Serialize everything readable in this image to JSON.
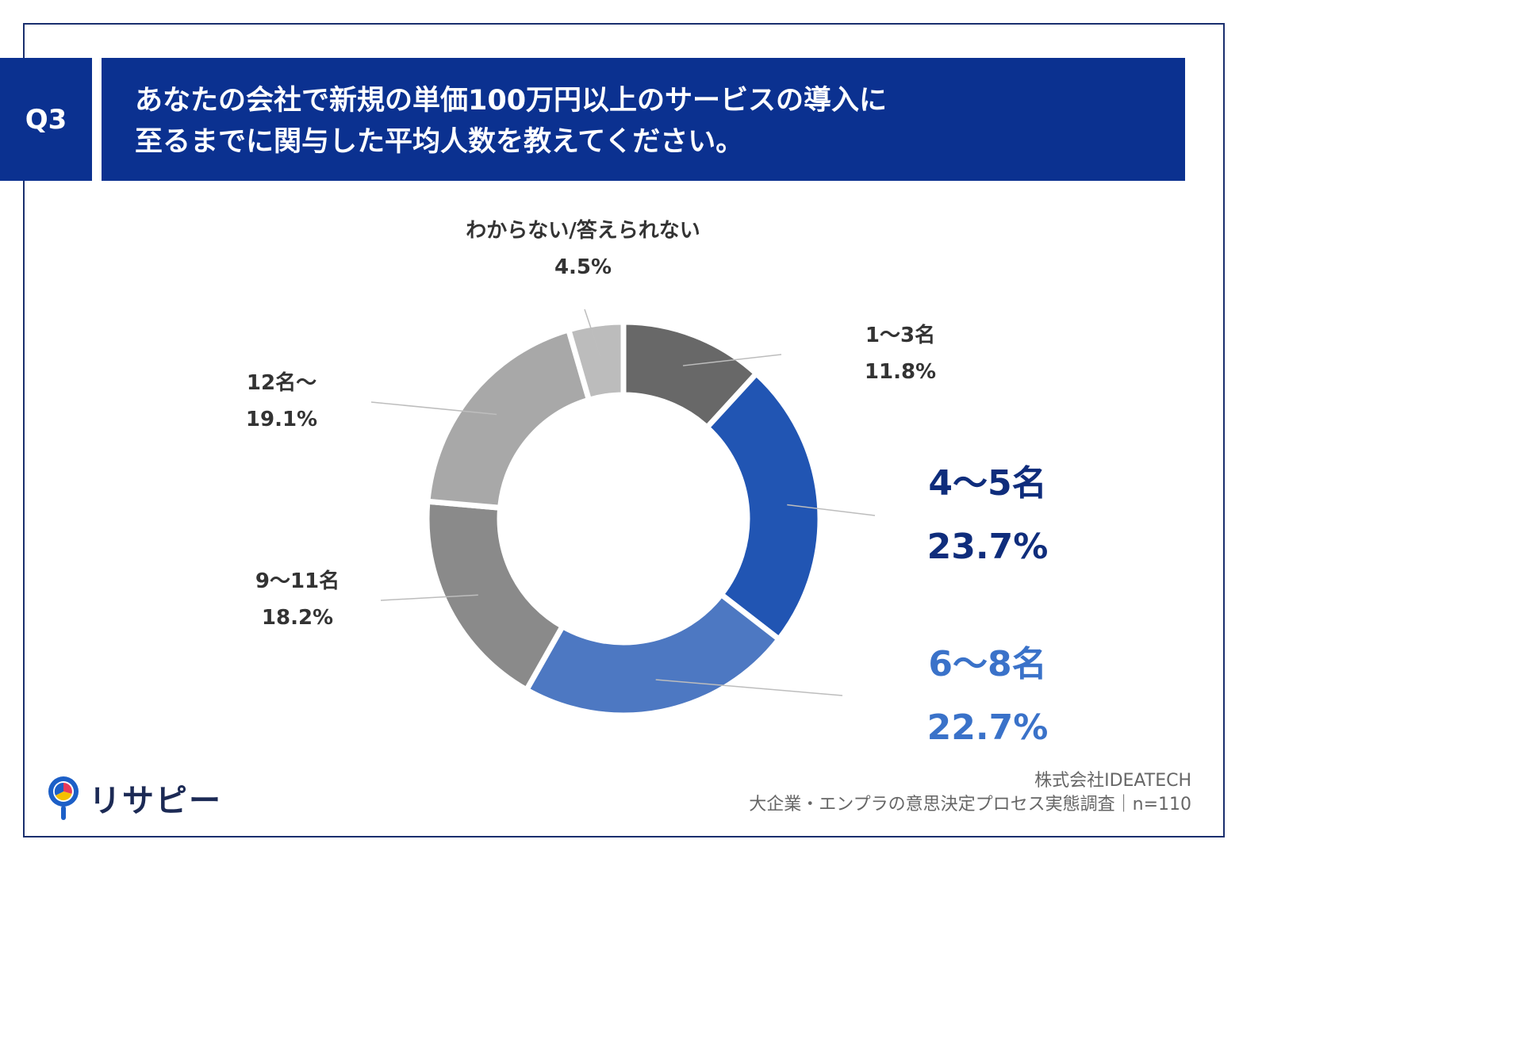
{
  "question": {
    "label": "Q3",
    "title_line1": "あなたの会社で新規の単価100万円以上のサービスの導入に",
    "title_line2": "至るまでに関与した平均人数を教えてください。"
  },
  "chart_data": {
    "type": "pie",
    "donut": true,
    "categories": [
      "1〜3名",
      "4〜5名",
      "6〜8名",
      "9〜11名",
      "12名〜",
      "わからない/答えられない"
    ],
    "values": [
      11.8,
      23.7,
      22.7,
      18.2,
      19.1,
      4.5
    ],
    "value_labels": [
      "11.8%",
      "23.7%",
      "22.7%",
      "18.2%",
      "19.1%",
      "4.5%"
    ],
    "colors": [
      "#686868",
      "#2155b3",
      "#4d78c2",
      "#8a8a8a",
      "#a8a8a8",
      "#bcbcbc"
    ],
    "legend": "none"
  },
  "footer": {
    "company": "株式会社IDEATECH",
    "survey": "大企業・エンプラの意思決定プロセス実態調査｜n=110"
  },
  "logo": {
    "text": "リサピー",
    "icon": "pin-pie-icon"
  }
}
